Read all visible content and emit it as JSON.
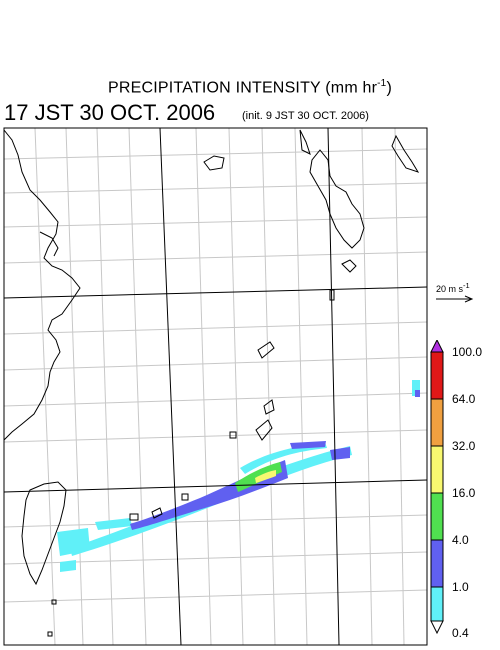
{
  "title": {
    "main": "PRECIPITATION INTENSITY (mm hr",
    "exponent": "-1",
    "close": ")"
  },
  "datetime": "17 JST 30 OCT. 2006",
  "init": "(init. 9 JST 30 OCT. 2006)",
  "vector_reference": {
    "label": "20 m s",
    "exponent": "-1"
  },
  "legend": {
    "labels": [
      "100.0",
      "64.0",
      "32.0",
      "16.0",
      "4.0",
      "1.0",
      "0.4"
    ],
    "colors": {
      "above_max": "#b030e0",
      "64-100": "#e01818",
      "32-64": "#f0a040",
      "16-32": "#f8f870",
      "4-16": "#50e050",
      "1-4": "#6060f0",
      "0.4-1": "#60f0f8"
    }
  },
  "colors": {
    "coast": "#000000",
    "grid": "#c8c8c8",
    "latlon": "#000000"
  }
}
